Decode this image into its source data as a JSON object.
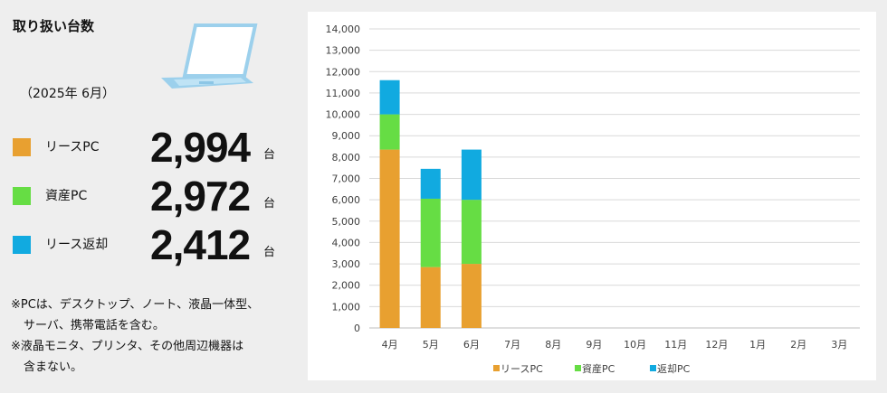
{
  "panel": {
    "title": "取り扱い台数",
    "period": "（2025年 6月）",
    "stats": [
      {
        "label": "リースPC",
        "value": "2,994",
        "unit": "台",
        "color": "#E8A030"
      },
      {
        "label": "資産PC",
        "value": "2,972",
        "unit": "台",
        "color": "#66DD44"
      },
      {
        "label": "リース返却",
        "value": "2,412",
        "unit": "台",
        "color": "#11AAE0"
      }
    ],
    "notes": [
      "※PCは、デスクトップ、ノート、液晶一体型、",
      "サーバ、携帯電話を含む。",
      "※液晶モニタ、プリンタ、その他周辺機器は",
      "含まない。"
    ]
  },
  "chart_data": {
    "type": "bar",
    "stacked": true,
    "categories": [
      "4月",
      "5月",
      "6月",
      "7月",
      "8月",
      "9月",
      "10月",
      "11月",
      "12月",
      "1月",
      "2月",
      "3月"
    ],
    "series": [
      {
        "name": "リースPC",
        "color": "#E8A030",
        "values": [
          8350,
          2850,
          3000,
          null,
          null,
          null,
          null,
          null,
          null,
          null,
          null,
          null
        ]
      },
      {
        "name": "資産PC",
        "color": "#66DD44",
        "values": [
          1650,
          3200,
          3000,
          null,
          null,
          null,
          null,
          null,
          null,
          null,
          null,
          null
        ]
      },
      {
        "name": "返却PC",
        "color": "#11AAE0",
        "values": [
          1600,
          1400,
          2350,
          null,
          null,
          null,
          null,
          null,
          null,
          null,
          null,
          null
        ]
      }
    ],
    "ylim": [
      0,
      14000
    ],
    "yticks": [
      "0",
      "1,000",
      "2,000",
      "3,000",
      "4,000",
      "5,000",
      "6,000",
      "7,000",
      "8,000",
      "9,000",
      "10,000",
      "11,000",
      "12,000",
      "13,000",
      "14,000"
    ],
    "grid": true,
    "legend": "bottom"
  }
}
